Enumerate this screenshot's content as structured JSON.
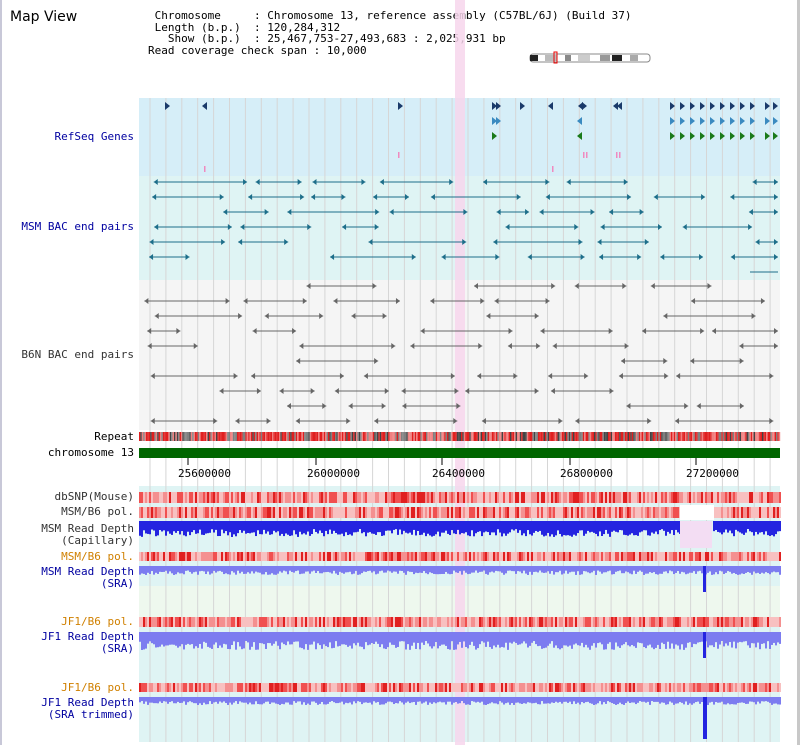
{
  "page": {
    "title": "Map View"
  },
  "info": {
    "chromosome_label": "Chromosome",
    "chromosome_value": "Chromosome 13, reference assembly (C57BL/6J) (Build 37)",
    "length_label": "Length (b.p.)",
    "length_value": "120,284,312",
    "show_label": "Show (b.p.)",
    "show_value": "25,467,753-27,493,683 : 2,025,931 bp",
    "coverage_label": "Read coverage check span",
    "coverage_value": "10,000"
  },
  "tracks": {
    "refseq": "RefSeq Genes",
    "msm_bac": "MSM BAC end pairs",
    "b6n_bac": "B6N BAC end pairs",
    "repeat": "Repeat",
    "chromosome": "chromosome 13",
    "dbsnp": "dbSNP(Mouse)",
    "msm_b6_pol": "MSM/B6 pol.",
    "msm_read_depth_cap_1": "MSM Read Depth",
    "msm_read_depth_cap_2": "(Capillary)",
    "msm_b6_pol_2": "MSM/B6 pol.",
    "msm_read_depth_sra_1": "MSM Read Depth",
    "msm_read_depth_sra_2": "(SRA)",
    "jf1_b6_pol": "JF1/B6 pol.",
    "jf1_read_depth_1": "JF1 Read Depth",
    "jf1_read_depth_2": "(SRA)",
    "jf1_b6_pol_2": "JF1/B6 pol.",
    "jf1_trim_1": "JF1 Read Depth",
    "jf1_trim_2": "(SRA trimmed)"
  },
  "axis": {
    "ticks": [
      "25600000",
      "26000000",
      "26400000",
      "26800000",
      "27200000"
    ],
    "range": [
      25467753,
      27493683
    ]
  },
  "colors": {
    "refseq_bg": "#d6eef8",
    "bac_bg": "#dff4f4",
    "highlight": "#f7d6ec",
    "chromosome_bar": "#006600",
    "depth_blue": "#2424e0",
    "depth_light": "#7c7cf0",
    "pol_red": "#e83030",
    "pol_light": "#f6b0b0"
  }
}
